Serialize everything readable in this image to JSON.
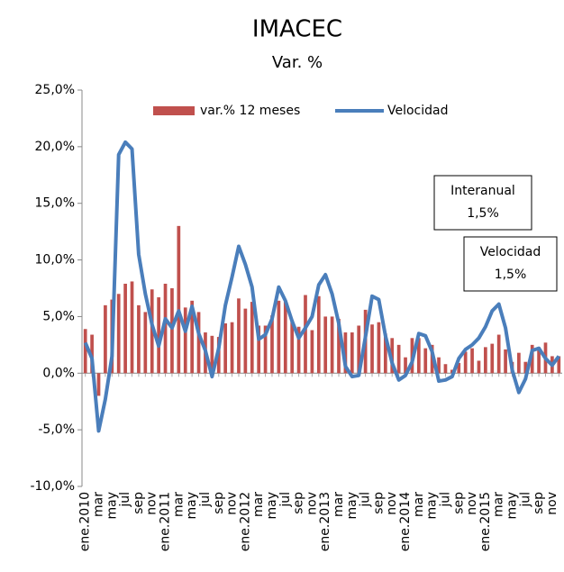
{
  "chart_data": {
    "type": "bar-line",
    "title": "IMACEC",
    "subtitle": "Var. %",
    "categories": [
      "ene.2010",
      null,
      "mar",
      null,
      "may",
      null,
      "jul",
      null,
      "sep",
      null,
      "nov",
      null,
      "ene.2011",
      null,
      "mar",
      null,
      "may",
      null,
      "jul",
      null,
      "sep",
      null,
      "nov",
      null,
      "ene.2012",
      null,
      "mar",
      null,
      "may",
      null,
      "jul",
      null,
      "sep",
      null,
      "nov",
      null,
      "ene.2013",
      null,
      "mar",
      null,
      "may",
      null,
      "jul",
      null,
      "sep",
      null,
      "nov",
      null,
      "ene.2014",
      null,
      "mar",
      null,
      "may",
      null,
      "jul",
      null,
      "sep",
      null,
      "nov",
      null,
      "ene.2015",
      null,
      "mar",
      null,
      "may",
      null,
      "jul",
      null,
      "sep",
      null,
      "nov",
      null
    ],
    "series": [
      {
        "name": "var.% 12 meses",
        "type": "bar",
        "color": "#c0504d",
        "values": [
          3.9,
          3.4,
          -2.0,
          6.0,
          6.5,
          7.0,
          7.9,
          8.1,
          6.0,
          5.4,
          7.4,
          6.7,
          7.9,
          7.5,
          13.0,
          5.8,
          6.4,
          5.4,
          3.6,
          3.3,
          3.2,
          4.4,
          4.5,
          6.6,
          5.7,
          6.3,
          4.2,
          4.2,
          5.1,
          6.4,
          6.3,
          4.7,
          4.1,
          6.9,
          3.8,
          6.8,
          5.0,
          5.0,
          4.8,
          3.6,
          3.6,
          4.2,
          5.6,
          4.3,
          4.5,
          3.5,
          3.1,
          2.5,
          1.4,
          3.1,
          3.1,
          2.2,
          2.5,
          1.4,
          0.8,
          0.3,
          0.9,
          1.9,
          2.2,
          1.1,
          2.3,
          2.6,
          3.4,
          2.1,
          1.0,
          1.8,
          1.0,
          2.5,
          2.3,
          2.7,
          1.5,
          1.5
        ]
      },
      {
        "name": "Velocidad",
        "type": "line",
        "color": "#4a7ebb",
        "values": [
          2.7,
          1.3,
          -5.1,
          -2.3,
          1.5,
          19.3,
          20.4,
          19.8,
          10.5,
          7.0,
          4.3,
          2.4,
          4.8,
          4.0,
          5.5,
          3.7,
          5.9,
          3.5,
          2.0,
          -0.3,
          2.2,
          6.0,
          8.5,
          11.2,
          9.6,
          7.6,
          3.0,
          3.4,
          4.8,
          7.6,
          6.4,
          4.6,
          3.1,
          4.0,
          5.0,
          7.8,
          8.7,
          7.0,
          4.4,
          0.6,
          -0.3,
          -0.2,
          3.2,
          6.8,
          6.5,
          3.3,
          0.9,
          -0.6,
          -0.2,
          1.0,
          3.5,
          3.3,
          1.9,
          -0.7,
          -0.6,
          -0.3,
          1.3,
          2.1,
          2.5,
          3.1,
          4.1,
          5.5,
          6.1,
          4.0,
          0.3,
          -1.7,
          -0.5,
          2.0,
          2.2,
          1.3,
          0.7,
          1.5
        ]
      }
    ],
    "ylim": [
      -10,
      25
    ],
    "yticks": [
      {
        "value": -10,
        "label": "-10,0%"
      },
      {
        "value": -5,
        "label": "-5,0%"
      },
      {
        "value": 0,
        "label": "0,0%"
      },
      {
        "value": 5,
        "label": "5,0%"
      },
      {
        "value": 10,
        "label": "10,0%"
      },
      {
        "value": 15,
        "label": "15,0%"
      },
      {
        "value": 20,
        "label": "20,0%"
      },
      {
        "value": 25,
        "label": "25,0%"
      }
    ],
    "annotations": [
      {
        "title": "Interanual",
        "label": "1,5%"
      },
      {
        "title": "Velocidad",
        "label": "1,5%"
      }
    ]
  }
}
